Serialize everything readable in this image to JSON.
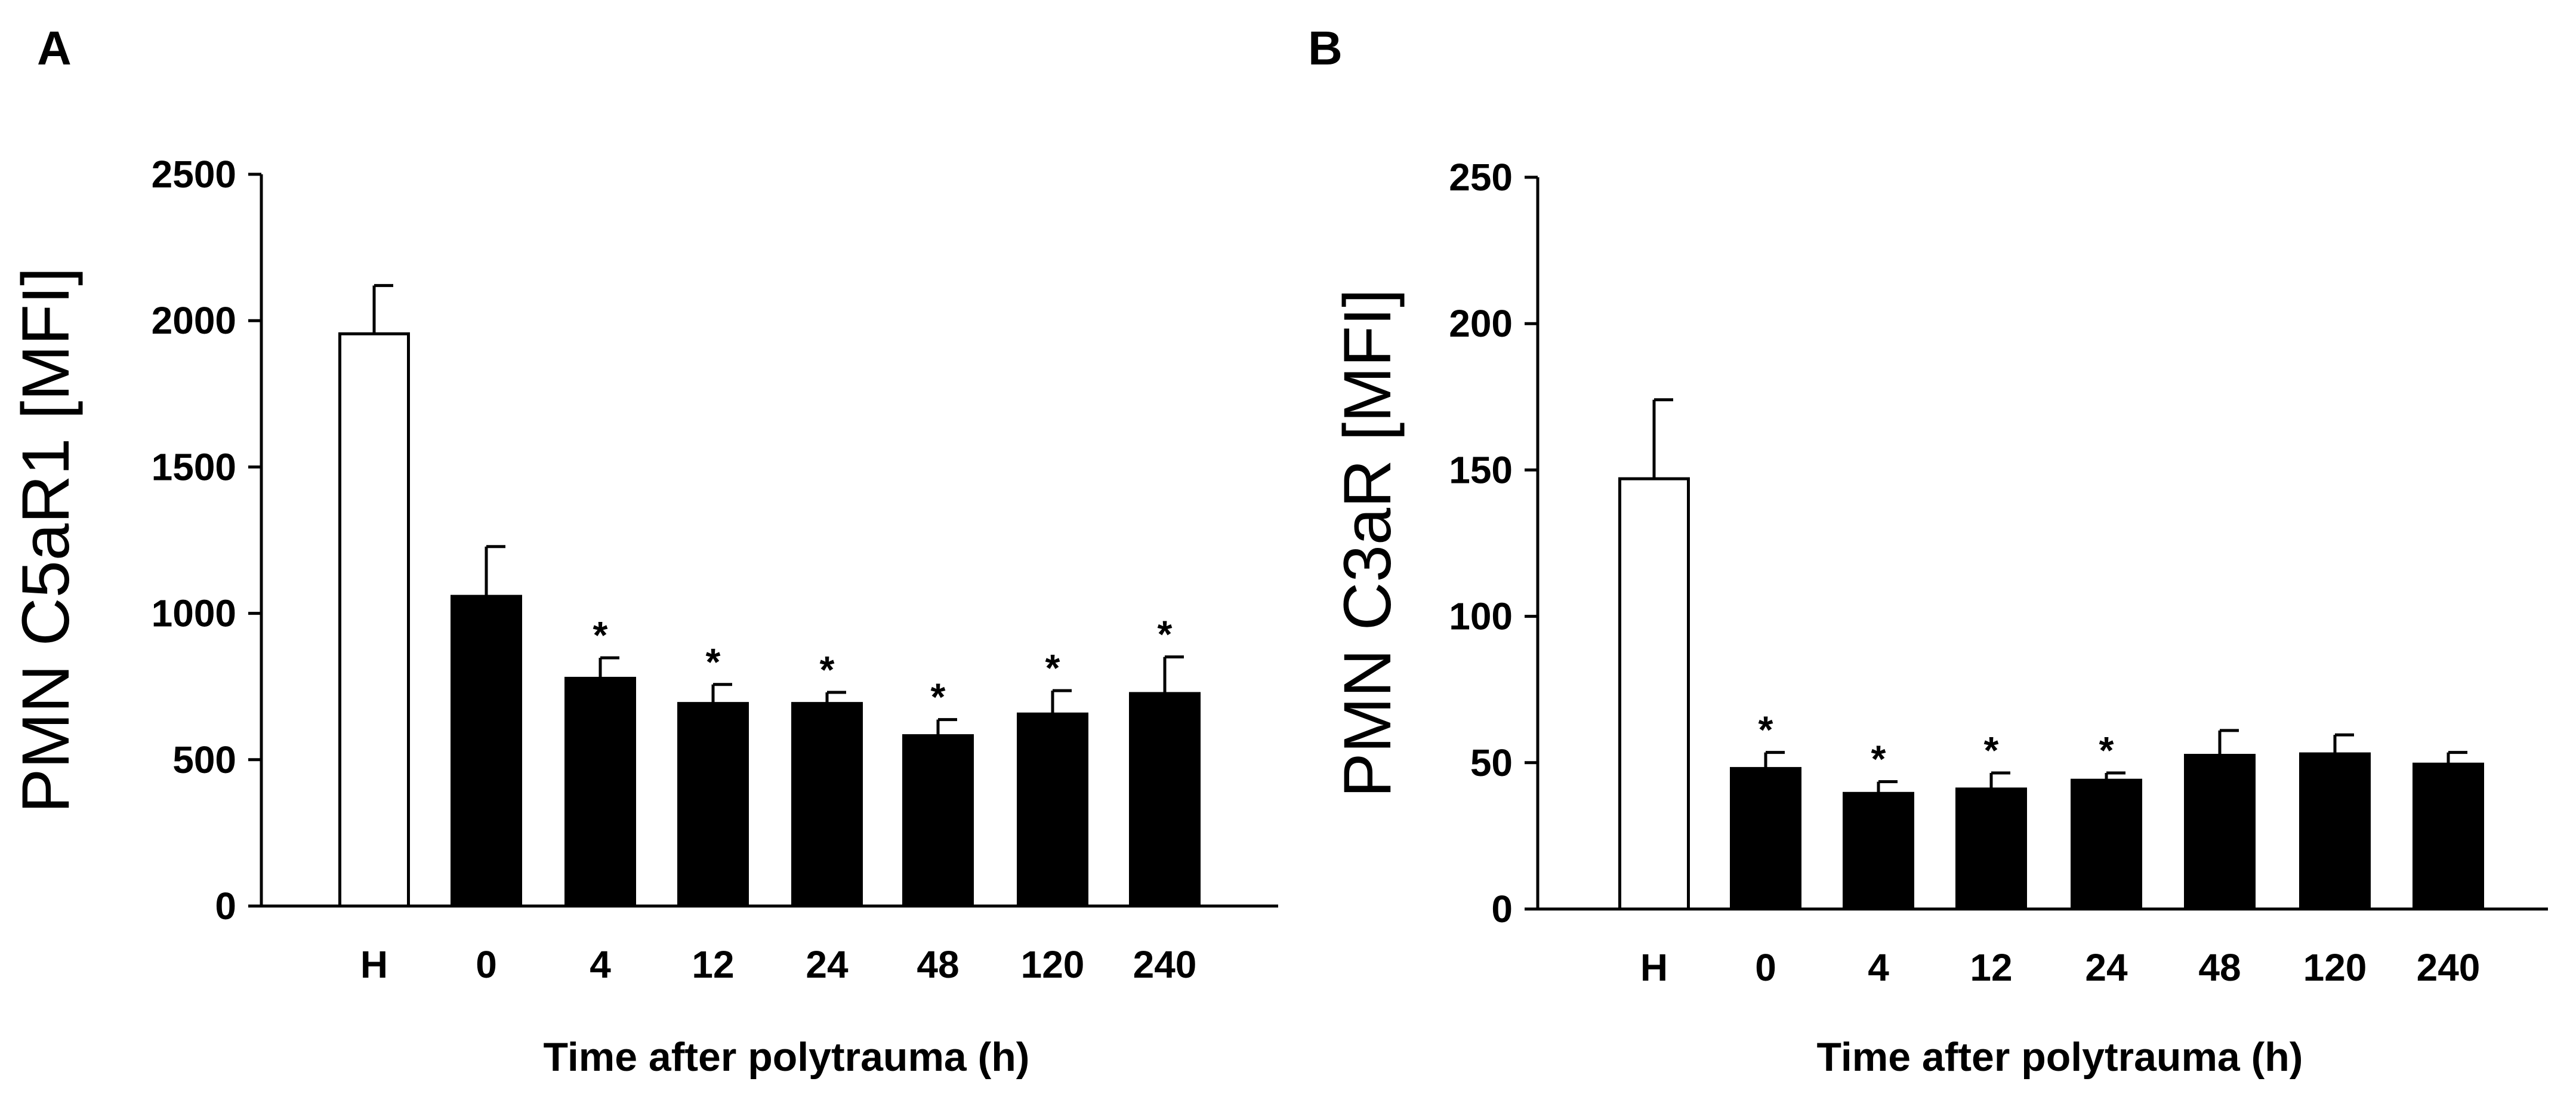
{
  "chart_data": [
    {
      "type": "bar",
      "panel_label": "A",
      "title": "",
      "xlabel": "Time after polytrauma (h)",
      "ylabel": "PMN C5aR1 [MFI]",
      "ylim": [
        0,
        2500
      ],
      "yticks": [
        "0",
        "500",
        "1000",
        "1500",
        "2000",
        "2500"
      ],
      "categories": [
        "H",
        "0",
        "4",
        "12",
        "24",
        "48",
        "120",
        "240"
      ],
      "values": [
        1955,
        1058,
        778,
        692,
        692,
        582,
        656,
        726
      ],
      "errors": [
        165,
        170,
        70,
        65,
        38,
        55,
        80,
        125
      ],
      "significant": [
        false,
        false,
        true,
        true,
        true,
        true,
        true,
        true
      ],
      "marker": "*",
      "bar_colors": [
        "#ffffff",
        "#000000",
        "#000000",
        "#000000",
        "#000000",
        "#000000",
        "#000000",
        "#000000"
      ]
    },
    {
      "type": "bar",
      "panel_label": "B",
      "title": "",
      "xlabel": "Time after polytrauma (h)",
      "ylabel": "PMN C3aR [MFI]",
      "ylim": [
        0,
        250
      ],
      "yticks": [
        "0",
        "50",
        "100",
        "150",
        "200",
        "250"
      ],
      "categories": [
        "H",
        "0",
        "4",
        "12",
        "24",
        "48",
        "120",
        "240"
      ],
      "values": [
        147,
        48,
        39.5,
        41,
        44,
        52.5,
        53,
        49.5
      ],
      "errors": [
        27,
        5.5,
        4,
        5.5,
        2.5,
        8.5,
        6.5,
        4
      ],
      "significant": [
        false,
        true,
        true,
        true,
        true,
        false,
        false,
        false
      ],
      "marker": "*",
      "bar_colors": [
        "#ffffff",
        "#000000",
        "#000000",
        "#000000",
        "#000000",
        "#000000",
        "#000000",
        "#000000"
      ]
    }
  ]
}
